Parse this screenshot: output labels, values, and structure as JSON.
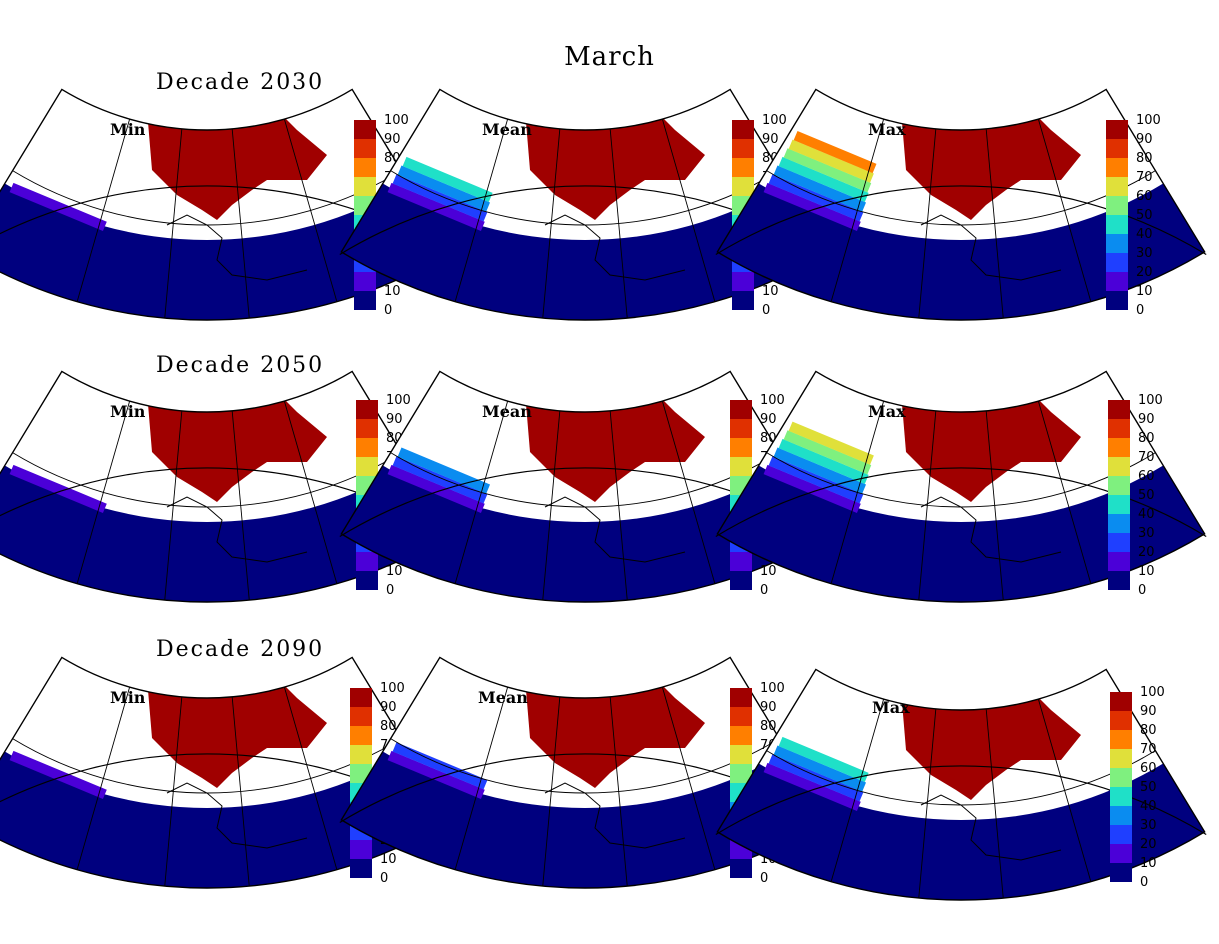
{
  "title": "March",
  "colorbar": {
    "ticks": [
      "0",
      "10",
      "20",
      "30",
      "40",
      "50",
      "60",
      "70",
      "80",
      "90",
      "100"
    ],
    "colors": [
      "#00007f",
      "#4b00d8",
      "#1f3fff",
      "#0a8cf0",
      "#1fe0c8",
      "#7ff07f",
      "#e0e03a",
      "#ff7f00",
      "#e03000",
      "#a00000"
    ]
  },
  "rows": [
    {
      "decade_label": "Decade 2030",
      "panels": [
        {
          "label": "Min",
          "ice_extent": 0.05
        },
        {
          "label": "Mean",
          "ice_extent": 0.45
        },
        {
          "label": "Max",
          "ice_extent": 0.85
        }
      ]
    },
    {
      "decade_label": "Decade 2050",
      "panels": [
        {
          "label": "Min",
          "ice_extent": 0.1
        },
        {
          "label": "Mean",
          "ice_extent": 0.4
        },
        {
          "label": "Max",
          "ice_extent": 0.8
        }
      ]
    },
    {
      "decade_label": "Decade 2090",
      "panels": [
        {
          "label": "Min",
          "ice_extent": 0.15
        },
        {
          "label": "Mean",
          "ice_extent": 0.3
        },
        {
          "label": "Max",
          "ice_extent": 0.55
        }
      ]
    }
  ]
}
